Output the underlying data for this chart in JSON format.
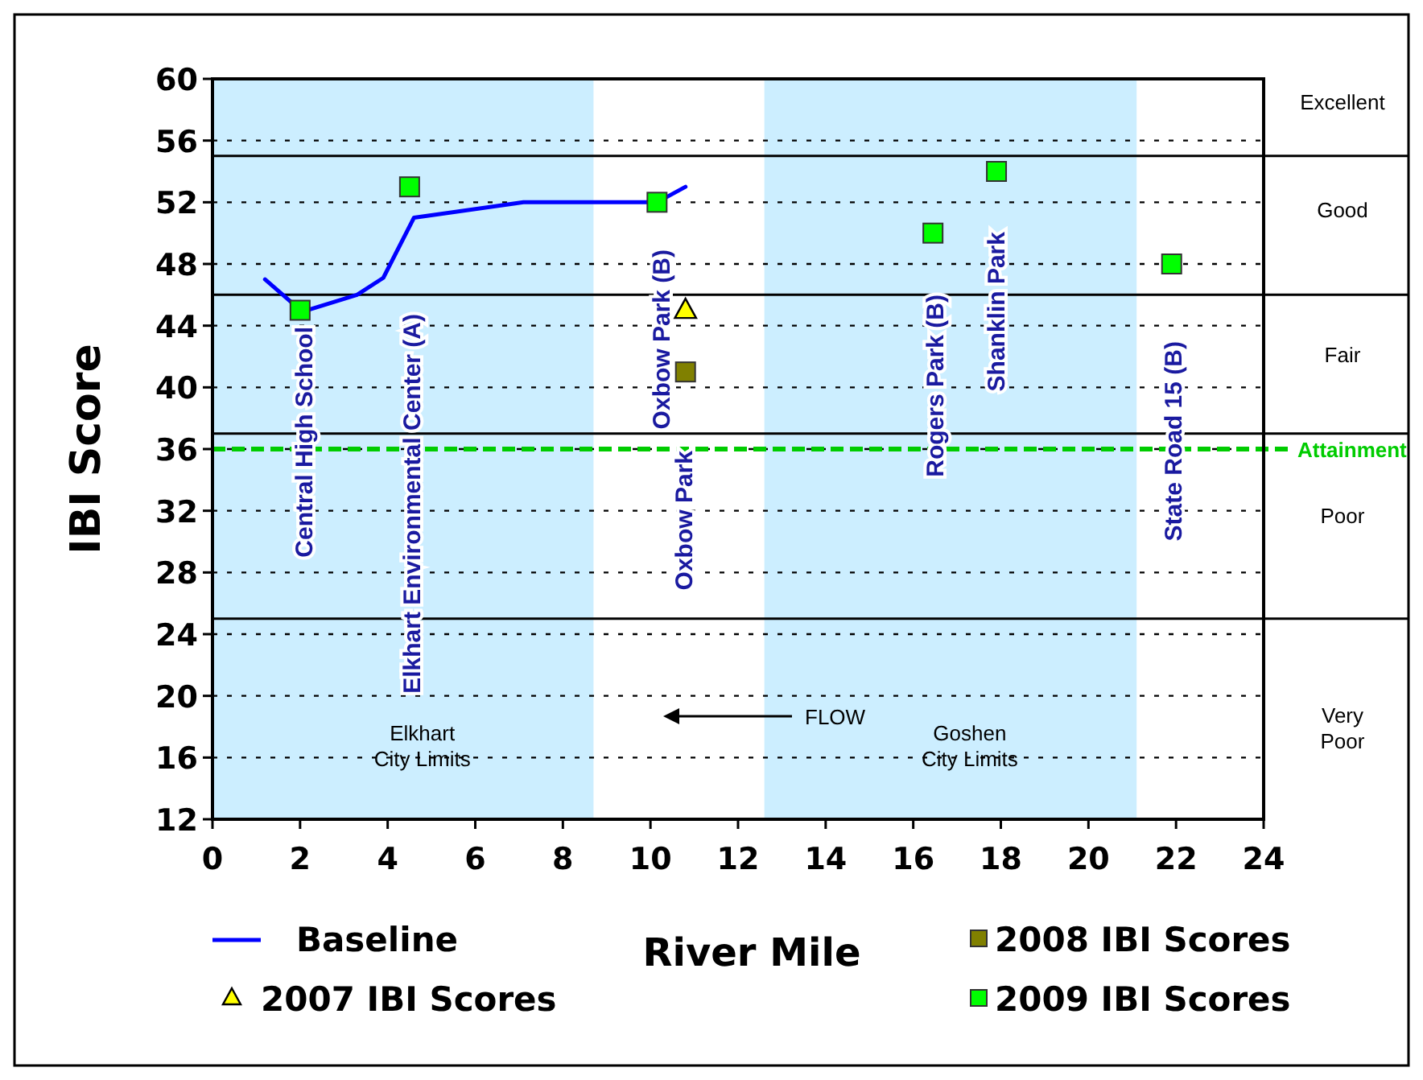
{
  "chart_data": {
    "type": "scatter",
    "xlabel": "River Mile",
    "ylabel": "IBI Score",
    "xlim": [
      0,
      24
    ],
    "xticks": [
      0,
      2,
      4,
      6,
      8,
      10,
      12,
      14,
      16,
      18,
      20,
      22,
      24
    ],
    "ylim": [
      12,
      60
    ],
    "yticks": [
      12,
      16,
      20,
      24,
      28,
      32,
      36,
      40,
      44,
      48,
      52,
      56,
      60
    ],
    "grid": "y",
    "legend": "bottom",
    "series": [
      {
        "name": "Baseline",
        "type": "line",
        "color": "#0000ff",
        "marker": "none",
        "line_style": "solid",
        "x": [
          1.2,
          2.05,
          3.3,
          3.9,
          4.6,
          7.1,
          10.15,
          10.8
        ],
        "values": [
          47,
          44.9,
          46,
          47.1,
          51,
          52,
          52,
          53
        ]
      },
      {
        "name": "2007 IBI Scores",
        "color": "#ffff00",
        "marker": "triangle",
        "x": [
          10.8
        ],
        "values": [
          45
        ]
      },
      {
        "name": "2008 IBI Scores",
        "color": "#808000",
        "marker": "square",
        "x": [
          10.8
        ],
        "values": [
          41
        ]
      },
      {
        "name": "2009 IBI Scores",
        "color": "#00ff00",
        "marker": "square",
        "x": [
          2,
          4.5,
          10.15,
          16.45,
          17.9,
          21.9
        ],
        "values": [
          45,
          53,
          52,
          50,
          54,
          48
        ]
      }
    ],
    "bands": [
      {
        "axis": "x",
        "from": 0,
        "to": 8.7,
        "label": "Elkhart\nCity Limits",
        "color": "#cceeff"
      },
      {
        "axis": "x",
        "from": 12.6,
        "to": 21.1,
        "label": "Goshen\nCity Limits",
        "color": "#cceeff"
      }
    ],
    "ref_lines": [
      {
        "axis": "y",
        "value": 55,
        "color": "#000000",
        "line_style": "solid"
      },
      {
        "axis": "y",
        "value": 46,
        "color": "#000000",
        "line_style": "solid"
      },
      {
        "axis": "y",
        "value": 37,
        "color": "#000000",
        "line_style": "solid"
      },
      {
        "axis": "y",
        "value": 25,
        "color": "#000000",
        "line_style": "solid"
      },
      {
        "axis": "y",
        "value": 36,
        "label": "Attainment",
        "color": "#00cc00",
        "line_style": "dashed"
      }
    ],
    "annotations": [
      "Excellent",
      "Good",
      "Fair",
      "Poor",
      "Very\nPoor",
      "Central High School",
      "Elkhart Environmental Center (A)",
      "Oxbow Park (B)",
      "Oxbow Park",
      "Rogers Park (B)",
      "Shanklin Park",
      "State Road 15 (B)",
      "FLOW"
    ]
  }
}
